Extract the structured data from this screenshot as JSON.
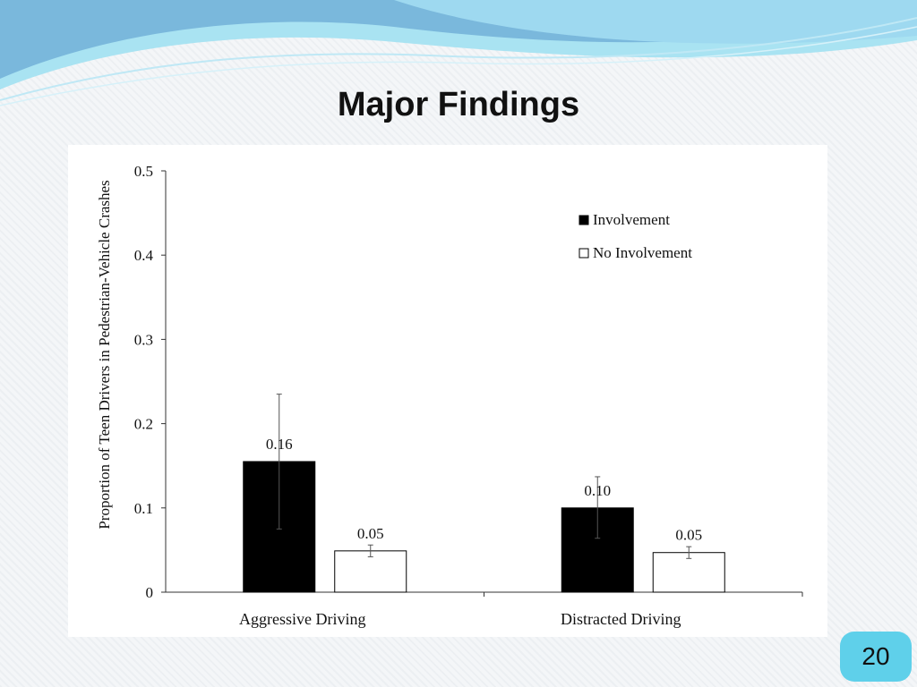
{
  "slide": {
    "title": "Major Findings",
    "page_number": "20"
  },
  "theme": {
    "accent": "#5fd0ea",
    "wave_dark": "#6fb0d8",
    "wave_light": "#a9e3f2",
    "involvement_color": "#000000",
    "no_involvement_color": "#ffffff"
  },
  "chart_data": {
    "type": "bar",
    "title": "",
    "xlabel": "",
    "ylabel": "Proportion of Teen Drivers in Pedestrian-Vehicle Crashes",
    "ylim": [
      0,
      0.5
    ],
    "yticks": [
      0,
      0.1,
      0.2,
      0.3,
      0.4,
      0.5
    ],
    "ytick_labels": [
      "0",
      "0.1",
      "0.2",
      "0.3",
      "0.4",
      "0.5"
    ],
    "categories": [
      "Aggressive Driving",
      "Distracted Driving"
    ],
    "series": [
      {
        "name": "Involvement",
        "values": [
          0.155,
          0.1
        ],
        "labels": [
          "0.16",
          "0.10"
        ],
        "error_low": [
          0.075,
          0.064
        ],
        "error_high": [
          0.235,
          0.137
        ],
        "color": "#000000"
      },
      {
        "name": "No Involvement",
        "values": [
          0.049,
          0.047
        ],
        "labels": [
          "0.05",
          "0.05"
        ],
        "error_low": [
          0.042,
          0.04
        ],
        "error_high": [
          0.056,
          0.054
        ],
        "color": "#ffffff"
      }
    ],
    "legend": {
      "position": "top-right"
    },
    "grid": false
  }
}
